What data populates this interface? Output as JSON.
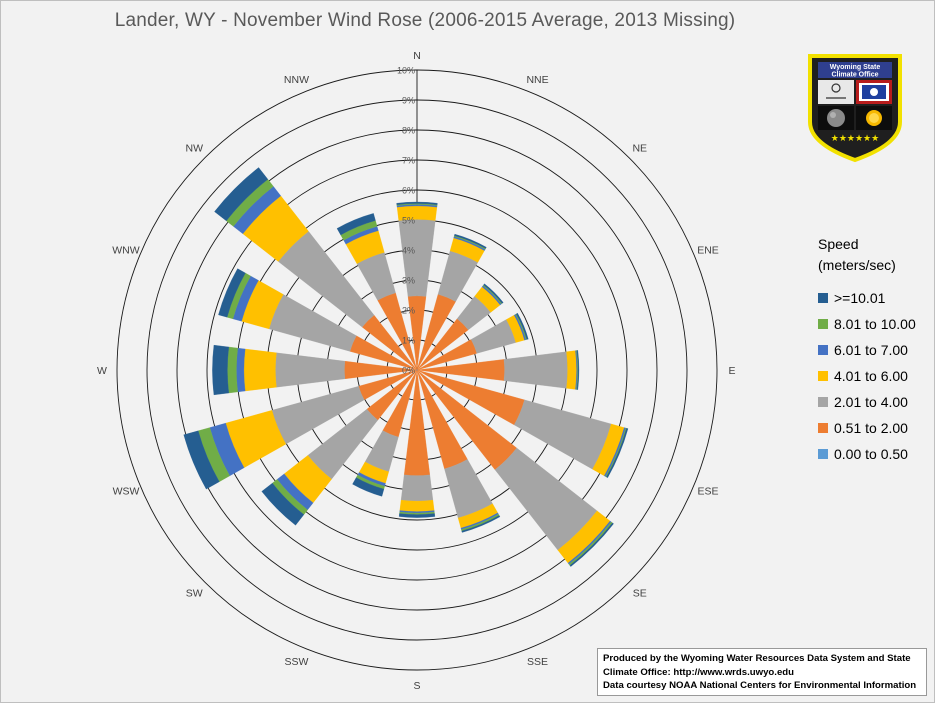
{
  "chart_data": {
    "type": "wind-rose",
    "title": "Lander, WY - November Wind Rose (2006-2015 Average, 2013 Missing)",
    "radial_axis": {
      "min": 0,
      "max": 10,
      "step": 1,
      "tick_labels": [
        "0%",
        "1%",
        "2%",
        "3%",
        "4%",
        "5%",
        "6%",
        "7%",
        "8%",
        "9%",
        "10%"
      ]
    },
    "directions": [
      "N",
      "NNE",
      "NE",
      "ENE",
      "E",
      "ESE",
      "SE",
      "SSE",
      "S",
      "SSW",
      "SW",
      "WSW",
      "W",
      "WNW",
      "NW",
      "NNW"
    ],
    "legend": {
      "title_line1": "Speed",
      "title_line2": "(meters/sec)",
      "placement": "right"
    },
    "series": [
      {
        "name": "0.00 to 0.50",
        "color": "#5b9bd5",
        "values": [
          0.02,
          0.02,
          0.02,
          0.02,
          0.02,
          0.02,
          0.02,
          0.02,
          0.02,
          0.02,
          0.02,
          0.02,
          0.02,
          0.02,
          0.02,
          0.02
        ]
      },
      {
        "name": "0.51 to 2.00",
        "color": "#ed7d31",
        "values": [
          2.45,
          2.6,
          2.15,
          2.05,
          2.9,
          3.7,
          4.2,
          3.4,
          3.5,
          2.3,
          2.1,
          2.0,
          2.4,
          2.3,
          2.3,
          2.65
        ]
      },
      {
        "name": "2.01 to 4.00",
        "color": "#a5a5a5",
        "values": [
          2.55,
          1.5,
          0.95,
          1.35,
          2.1,
          3.0,
          3.4,
          1.7,
          0.85,
          1.2,
          2.5,
          3.0,
          2.3,
          2.8,
          3.55,
          1.4
        ]
      },
      {
        "name": "4.01 to 6.00",
        "color": "#ffc000",
        "values": [
          0.45,
          0.45,
          0.4,
          0.3,
          0.3,
          0.45,
          0.55,
          0.35,
          0.35,
          0.4,
          1.0,
          1.6,
          1.05,
          0.95,
          1.5,
          0.75
        ]
      },
      {
        "name": "6.01 to 7.00",
        "color": "#4472c4",
        "values": [
          0.05,
          0.05,
          0.05,
          0.05,
          0.03,
          0.05,
          0.05,
          0.05,
          0.05,
          0.1,
          0.3,
          0.55,
          0.25,
          0.3,
          0.4,
          0.15
        ]
      },
      {
        "name": "8.01 to 10.00",
        "color": "#70ad47",
        "values": [
          0.03,
          0.03,
          0.03,
          0.03,
          0.02,
          0.03,
          0.05,
          0.05,
          0.05,
          0.1,
          0.2,
          0.4,
          0.3,
          0.2,
          0.3,
          0.2
        ]
      },
      {
        "name": ">=10.01",
        "color": "#255e91",
        "values": [
          0.05,
          0.05,
          0.05,
          0.05,
          0.03,
          0.05,
          0.05,
          0.05,
          0.1,
          0.25,
          0.45,
          0.5,
          0.5,
          0.3,
          0.5,
          0.25
        ]
      }
    ]
  },
  "logo": {
    "line1": "Wyoming State",
    "line2": "Climate Office",
    "stars": "★★★★★★"
  },
  "credit": {
    "line1": "Produced by the Wyoming Water Resources Data System and State",
    "line2": "Climate Office: http://www.wrds.uwyo.edu",
    "line3": "Data courtesy NOAA National Centers for Environmental Information"
  }
}
